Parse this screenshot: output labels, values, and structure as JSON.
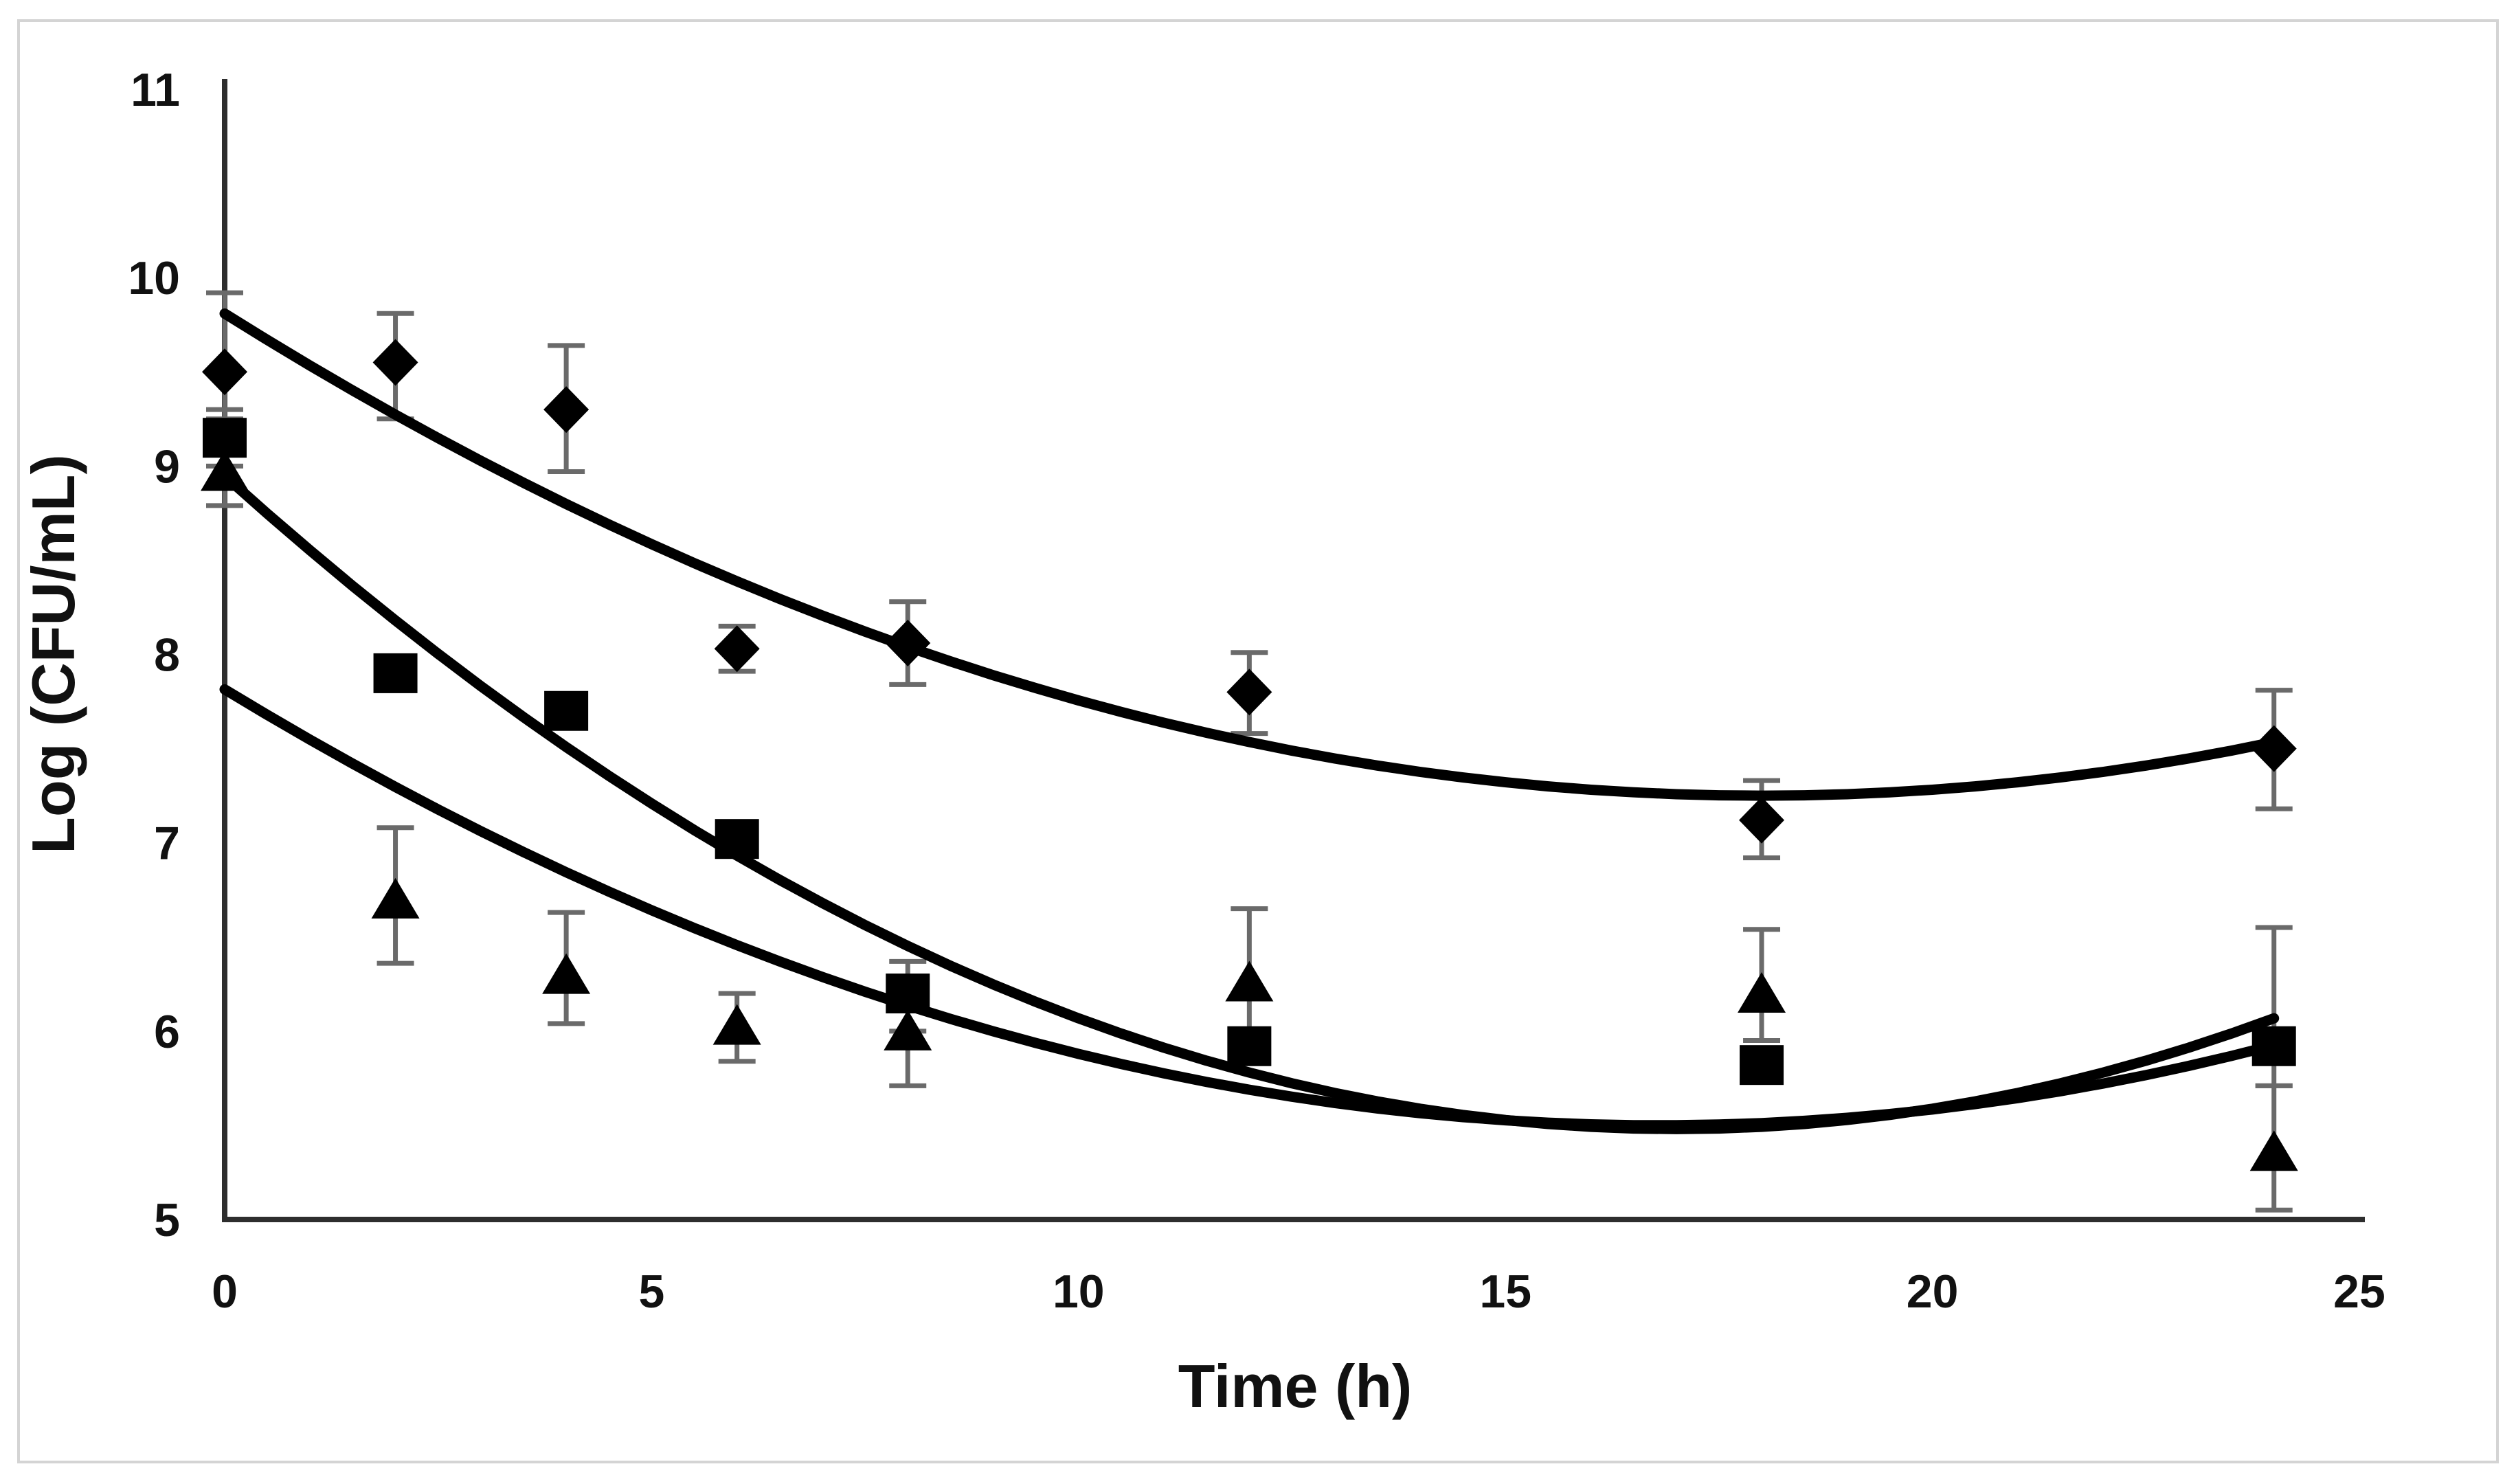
{
  "chart_data": {
    "type": "scatter",
    "title": "",
    "xlabel": "Time (h)",
    "ylabel": "Log (CFU/mL)",
    "xlim": [
      0,
      25
    ],
    "ylim": [
      5,
      11
    ],
    "xticks": [
      "0",
      "5",
      "10",
      "15",
      "20",
      "25"
    ],
    "yticks": [
      "5",
      "6",
      "7",
      "8",
      "9",
      "10",
      "11"
    ],
    "grid": false,
    "legend": null,
    "x": [
      0,
      2,
      4,
      6,
      8,
      12,
      18,
      24
    ],
    "series": [
      {
        "name": "diamond-series",
        "marker": "diamond",
        "values": [
          9.5,
          9.55,
          9.3,
          8.03,
          8.06,
          7.8,
          7.12,
          7.5
        ],
        "err_up": [
          0.42,
          0.26,
          0.34,
          0.12,
          0.22,
          0.21,
          0.21,
          0.31
        ],
        "err_down": [
          0.25,
          0.3,
          0.33,
          0.12,
          0.22,
          0.22,
          0.2,
          0.32
        ],
        "trend": {
          "type": "quadratic",
          "a": 0.0079,
          "x0": 18.0,
          "c": 7.25,
          "domain": [
            0,
            24
          ]
        }
      },
      {
        "name": "square-series",
        "marker": "square",
        "values": [
          9.15,
          7.9,
          7.7,
          7.02,
          6.2,
          5.92,
          5.82,
          5.92
        ],
        "err_up": [
          0.15,
          0,
          0,
          0,
          0.17,
          0,
          0,
          0.63
        ],
        "err_down": [
          0.15,
          0,
          0,
          0,
          0.2,
          0,
          0,
          0.21
        ],
        "trend": {
          "type": "quadratic",
          "a": 0.012,
          "x0": 17.0,
          "c": 5.48,
          "domain": [
            0,
            24
          ]
        }
      },
      {
        "name": "triangle-series",
        "marker": "triangle",
        "values": [
          8.97,
          6.7,
          6.3,
          6.03,
          6.0,
          6.26,
          6.2,
          5.36
        ],
        "err_up": [
          0,
          0.38,
          0.33,
          0.17,
          0,
          0.39,
          0.34,
          0.35
        ],
        "err_down": [
          0.18,
          0.34,
          0.26,
          0.19,
          0.29,
          0.3,
          0.25,
          0.31
        ],
        "trend": {
          "type": "quadratic",
          "a": 0.0082,
          "x0": 16.8,
          "c": 5.5,
          "domain": [
            0,
            24
          ]
        }
      }
    ],
    "colors": {
      "marker": "#000000",
      "trend_line": "#000000",
      "error_bar": "#6a6a6a",
      "axis": "#2e2e2e",
      "tick_label": "#111111",
      "axis_title": "#111111",
      "frame_border": "#d4d4d4",
      "background": "#ffffff"
    }
  }
}
